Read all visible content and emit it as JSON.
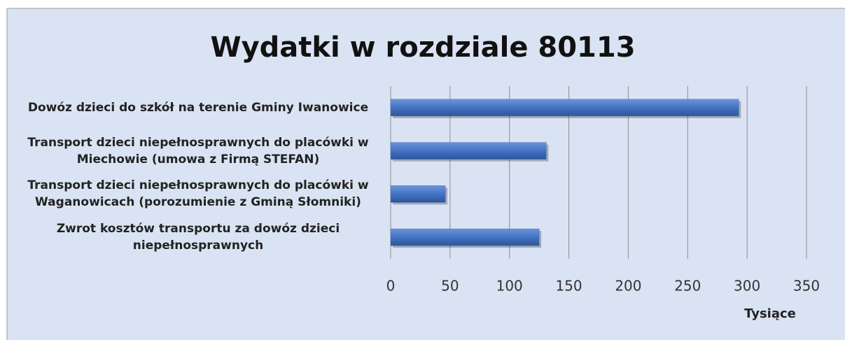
{
  "chart_data": {
    "type": "bar",
    "orientation": "horizontal",
    "title": "Wydatki w rozdziale 80113",
    "categories": [
      "Dowóz dzieci do szkół na terenie Gminy Iwanowice",
      "Transport dzieci niepełnosprawnych do placówki w Miechowie (umowa z Firmą STEFAN)",
      "Transport dzieci niepełnosprawnych do placówki w Waganowicach (porozumienie z Gminą Słomniki)",
      "Zwrot kosztów transportu za dowóz dzieci niepełnosprawnych"
    ],
    "values": [
      293,
      131,
      46,
      125
    ],
    "color": "#4472c4",
    "xlabel": "Tysiące",
    "xlim": [
      0,
      350
    ],
    "xticks": [
      0,
      50,
      100,
      150,
      200,
      250,
      300,
      350
    ],
    "grid": true
  }
}
